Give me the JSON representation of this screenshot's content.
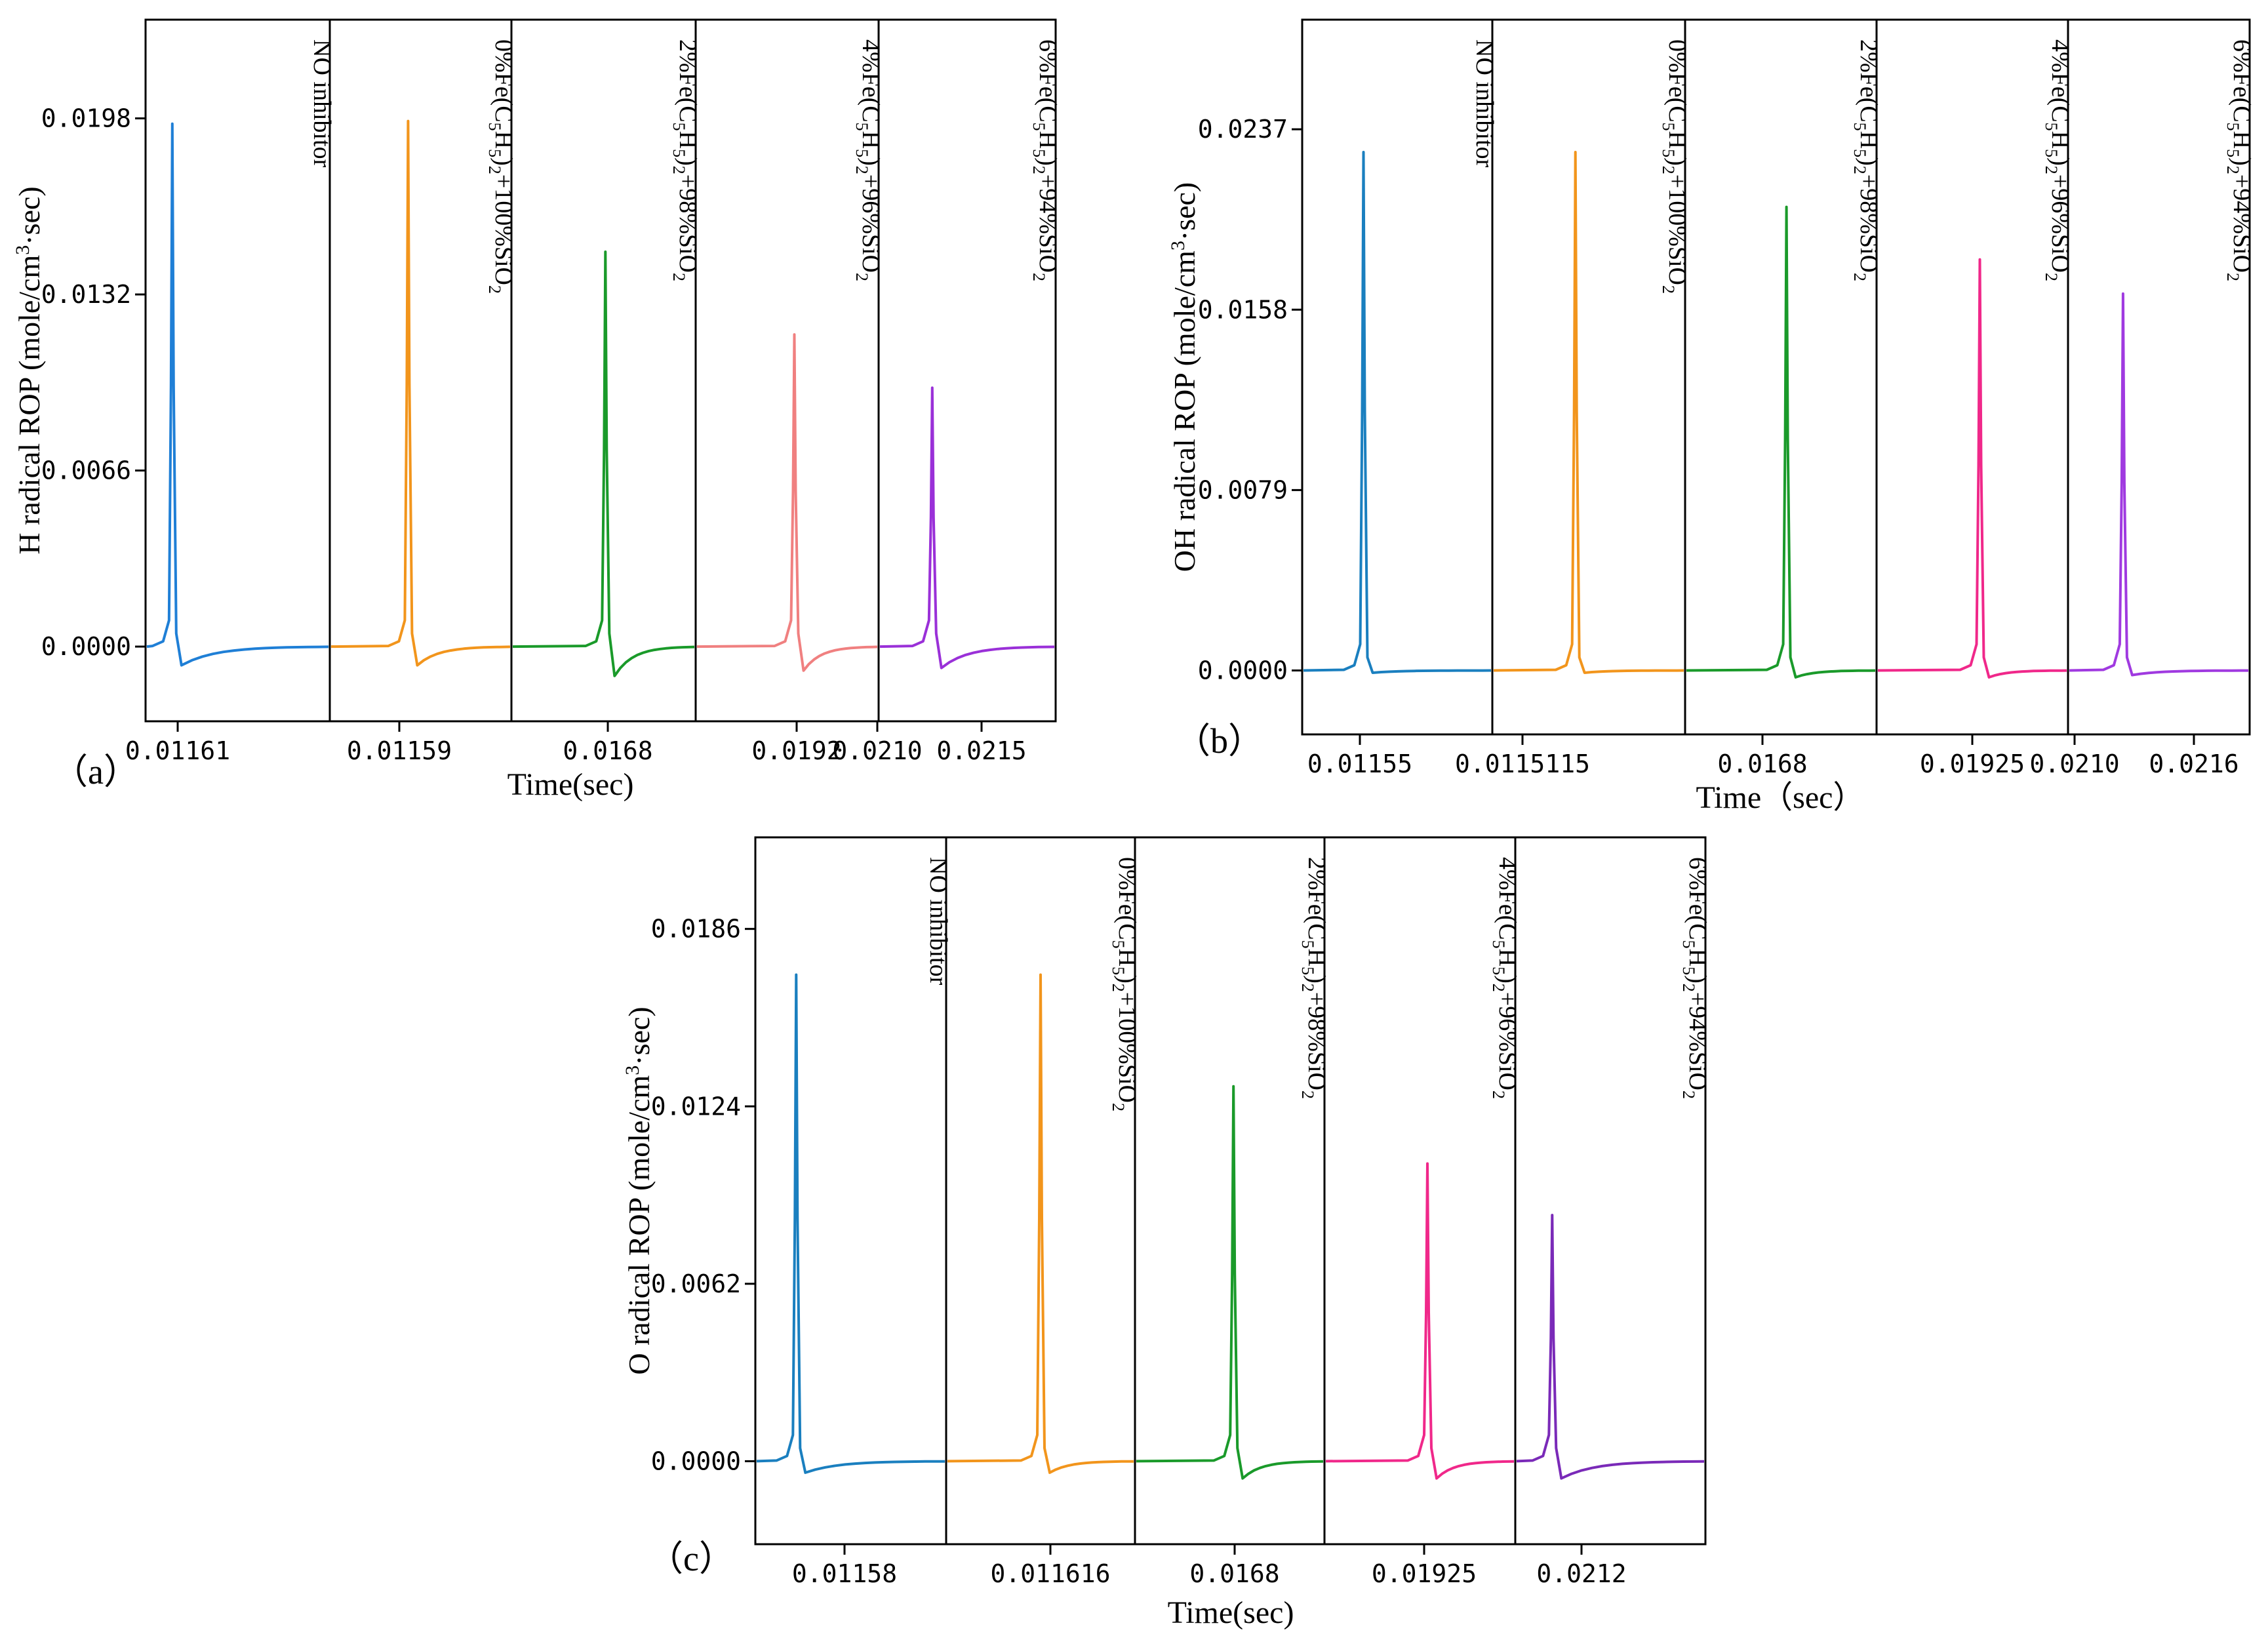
{
  "chart_data": [
    {
      "type": "line",
      "panel_label": "（a）",
      "ylabel": "H radical ROP (mole/cm³·sec)",
      "xlabel": "Time(sec)",
      "yticks": [
        0.0,
        0.0066,
        0.0132,
        0.0198
      ],
      "ytick_labels": [
        "0.0000",
        "0.0066",
        "0.0132",
        "0.0198"
      ],
      "ylim": [
        -0.0028,
        0.0235
      ],
      "xtick_labels": [
        "0.01161",
        "0.01159",
        "0.0168",
        "0.0192",
        "0.0210",
        "0.0215"
      ],
      "series": [
        {
          "name": "NO inhibitor",
          "color": "#1f7fd6",
          "peak": 0.0196,
          "dip": -0.0007
        },
        {
          "name": "0%Fe(C5H5)2+100%SiO2",
          "color": "#f2951c",
          "peak": 0.0197,
          "dip": -0.0007
        },
        {
          "name": "2%Fe(C5H5)2+98%SiO2",
          "color": "#1a9a2a",
          "peak": 0.0148,
          "dip": -0.0011
        },
        {
          "name": "4%Fe(C5H5)2+96%SiO2",
          "color": "#f08080",
          "peak": 0.0117,
          "dip": -0.0009
        },
        {
          "name": "6%Fe(C5H5)2+94%SiO2",
          "color": "#9a30d8",
          "peak": 0.0097,
          "dip": -0.0008
        }
      ]
    },
    {
      "type": "line",
      "panel_label": "（b）",
      "ylabel": "OH radical ROP (mole/cm³·sec)",
      "xlabel": "Time（sec）",
      "yticks": [
        0.0,
        0.0079,
        0.0158,
        0.0237
      ],
      "ytick_labels": [
        "0.0000",
        "0.0079",
        "0.0158",
        "0.0237"
      ],
      "ylim": [
        -0.0028,
        0.0285
      ],
      "xtick_labels": [
        "0.01155",
        "0.0115115",
        "0.0168",
        "0.01925",
        "0.0210",
        "0.0216"
      ],
      "series": [
        {
          "name": "NO inhibitor",
          "color": "#1a7fbf",
          "peak": 0.0227,
          "dip": -0.0001
        },
        {
          "name": "0%Fe(C5H5)2+100%SiO2",
          "color": "#f2951c",
          "peak": 0.0227,
          "dip": -0.0001
        },
        {
          "name": "2%Fe(C5H5)2+98%SiO2",
          "color": "#1a9a2a",
          "peak": 0.0203,
          "dip": -0.0003
        },
        {
          "name": "4%Fe(C5H5)2+96%SiO2",
          "color": "#f0288a",
          "peak": 0.018,
          "dip": -0.0003
        },
        {
          "name": "6%Fe(C5H5)2+94%SiO2",
          "color": "#a03ae0",
          "peak": 0.0165,
          "dip": -0.0002
        }
      ]
    },
    {
      "type": "line",
      "panel_label": "（c）",
      "ylabel": "O radical ROP (mole/cm³·sec)",
      "xlabel": "Time(sec)",
      "yticks": [
        0.0,
        0.0062,
        0.0124,
        0.0186
      ],
      "ytick_labels": [
        "0.0000",
        "0.0062",
        "0.0124",
        "0.0186"
      ],
      "ylim": [
        -0.0029,
        0.0218
      ],
      "xtick_labels": [
        "0.01158",
        "0.011616",
        "0.0168",
        "0.01925",
        "0.0212"
      ],
      "series": [
        {
          "name": "NO inhibitor",
          "color": "#1a7fbf",
          "peak": 0.017,
          "dip": -0.0004
        },
        {
          "name": "0%Fe(C5H5)2+100%SiO2",
          "color": "#f2951c",
          "peak": 0.017,
          "dip": -0.0004
        },
        {
          "name": "2%Fe(C5H5)2+98%SiO2",
          "color": "#1a9a2a",
          "peak": 0.0131,
          "dip": -0.0006
        },
        {
          "name": "4%Fe(C5H5)2+96%SiO2",
          "color": "#f0288a",
          "peak": 0.0104,
          "dip": -0.0006
        },
        {
          "name": "6%Fe(C5H5)2+94%SiO2",
          "color": "#7a2ab8",
          "peak": 0.0086,
          "dip": -0.0006
        }
      ]
    }
  ]
}
